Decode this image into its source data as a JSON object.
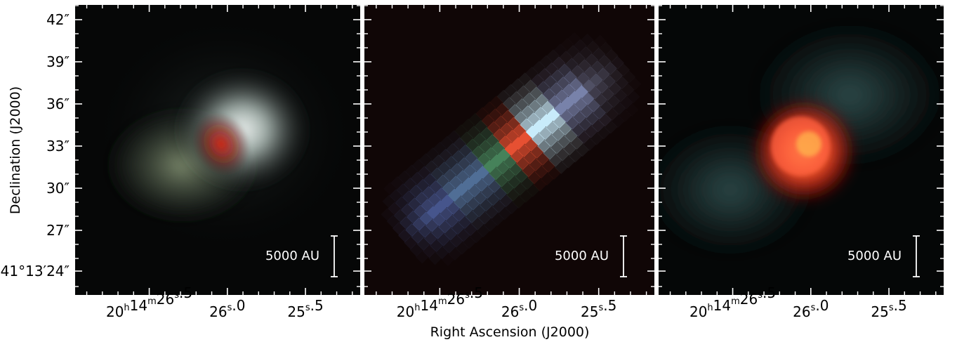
{
  "figure": {
    "xlabel": "Right Ascension (J2000)",
    "ylabel": "Declination (J2000)",
    "dec_ticks": [
      {
        "whole": "42",
        "frac": "″"
      },
      {
        "whole": "39",
        "frac": "″"
      },
      {
        "whole": "36",
        "frac": "″"
      },
      {
        "whole": "33",
        "frac": "″"
      },
      {
        "whole": "30",
        "frac": "″"
      },
      {
        "whole": "27",
        "frac": "″"
      },
      {
        "whole": "41°13′24",
        "frac": "″"
      }
    ],
    "ra_ticks": [
      {
        "label_a": "20",
        "sup_a": "h",
        "label_b": "14",
        "sup_b": "m",
        "label_c": "26",
        "sup_c": "s",
        "label_d": ".5"
      },
      {
        "label_c": "26",
        "sup_c": "s",
        "label_d": ".0"
      },
      {
        "label_c": "25",
        "sup_c": "s",
        "label_d": ".5"
      }
    ],
    "panels": [
      {
        "name": "panel-1",
        "scalebar": "5000 AU"
      },
      {
        "name": "panel-2",
        "scalebar": "5000 AU"
      },
      {
        "name": "panel-3",
        "scalebar": "5000 AU"
      }
    ]
  }
}
